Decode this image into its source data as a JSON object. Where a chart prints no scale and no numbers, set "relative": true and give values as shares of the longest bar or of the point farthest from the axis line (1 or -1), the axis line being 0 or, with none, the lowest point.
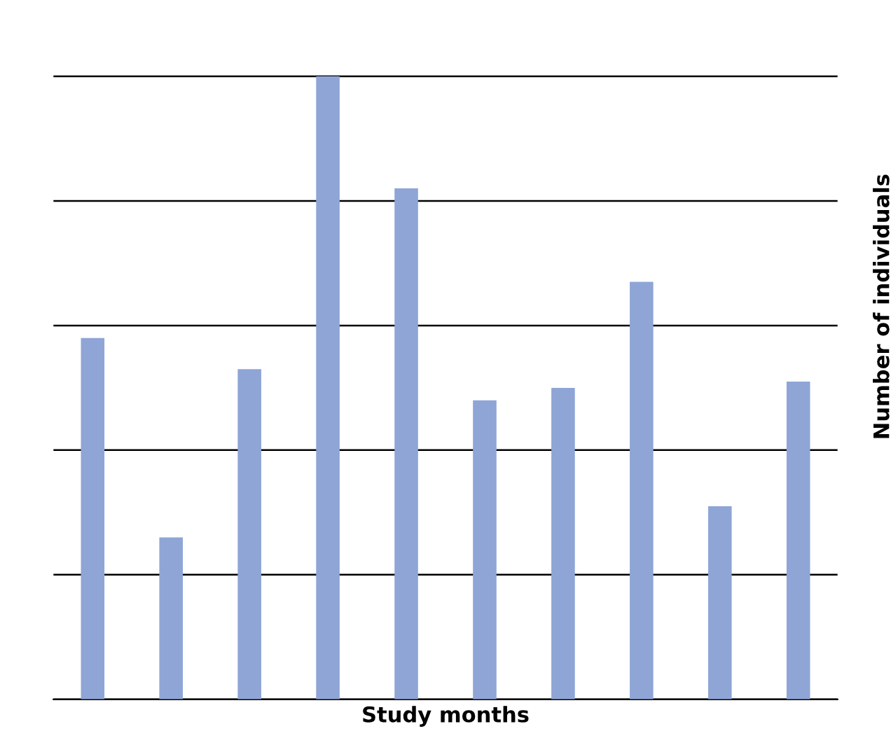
{
  "chart_data": {
    "type": "bar",
    "xlabel": "Study months",
    "ylabel": "Number of individuals",
    "categories": [
      null,
      null,
      null,
      null,
      null,
      null,
      null,
      null,
      null,
      null
    ],
    "values": [
      0.58,
      0.26,
      0.53,
      1,
      0.82,
      0.48,
      0.5,
      0.67,
      0.31,
      0.51
    ],
    "color": "#8ea5d6",
    "relative": true,
    "grid": "y"
  }
}
